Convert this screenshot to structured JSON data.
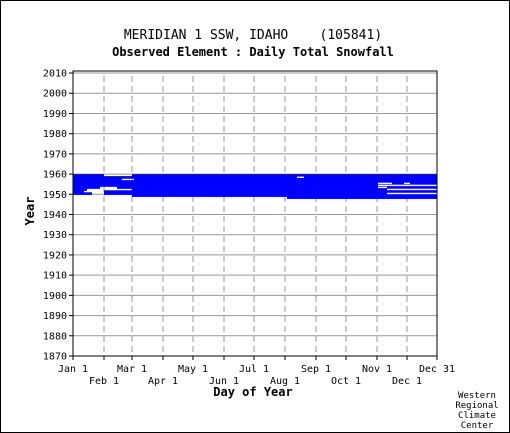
{
  "chart_data": {
    "type": "timeline",
    "title": "MERIDIAN 1 SSW, IDAHO    (105841)",
    "subtitle": "Observed Element : Daily Total Snowfall",
    "xlabel": "Day of Year",
    "ylabel": "Year",
    "xlim": [
      1,
      365
    ],
    "ylim": [
      1870,
      2011
    ],
    "x_ticks_upper": [
      {
        "label": "Jan 1",
        "day": 1
      },
      {
        "label": "Mar 1",
        "day": 60
      },
      {
        "label": "May 1",
        "day": 121
      },
      {
        "label": "Jul 1",
        "day": 182
      },
      {
        "label": "Sep 1",
        "day": 244
      },
      {
        "label": "Nov 1",
        "day": 305
      },
      {
        "label": "Dec 31",
        "day": 365
      }
    ],
    "x_ticks_lower": [
      {
        "label": "Feb 1",
        "day": 32
      },
      {
        "label": "Apr 1",
        "day": 91
      },
      {
        "label": "Jun 1",
        "day": 152
      },
      {
        "label": "Aug 1",
        "day": 213
      },
      {
        "label": "Oct 1",
        "day": 274
      },
      {
        "label": "Dec 1",
        "day": 335
      }
    ],
    "y_ticks": [
      2010,
      2000,
      1990,
      1980,
      1970,
      1960,
      1950,
      1940,
      1930,
      1920,
      1910,
      1900,
      1890,
      1880,
      1870
    ],
    "grid": true,
    "series_color": "#0000ff",
    "segments": [
      {
        "year": 1959,
        "start": 1,
        "end": 32
      },
      {
        "year": 1959,
        "start": 60,
        "end": 365
      },
      {
        "year": 1958,
        "start": 1,
        "end": 365
      },
      {
        "year": 1957,
        "start": 1,
        "end": 50
      },
      {
        "year": 1957,
        "start": 62,
        "end": 365
      },
      {
        "year": 1956,
        "start": 1,
        "end": 365
      },
      {
        "year": 1955,
        "start": 1,
        "end": 365
      },
      {
        "year": 1954,
        "start": 1,
        "end": 365
      },
      {
        "year": 1953,
        "start": 1,
        "end": 28
      },
      {
        "year": 1953,
        "start": 45,
        "end": 365
      },
      {
        "year": 1952,
        "start": 1,
        "end": 15
      },
      {
        "year": 1952,
        "start": 60,
        "end": 365
      },
      {
        "year": 1951,
        "start": 1,
        "end": 12
      },
      {
        "year": 1951,
        "start": 32,
        "end": 365
      },
      {
        "year": 1950,
        "start": 1,
        "end": 20
      },
      {
        "year": 1950,
        "start": 32,
        "end": 365
      },
      {
        "year": 1949,
        "start": 60,
        "end": 365
      },
      {
        "year": 1948,
        "start": 215,
        "end": 365
      }
    ],
    "white_gaps": [
      {
        "year": 1958,
        "start": 225,
        "end": 232
      },
      {
        "year": 1955,
        "start": 306,
        "end": 320
      },
      {
        "year": 1955,
        "start": 332,
        "end": 338
      },
      {
        "year": 1954,
        "start": 306,
        "end": 365
      },
      {
        "year": 1953,
        "start": 306,
        "end": 315
      },
      {
        "year": 1952,
        "start": 315,
        "end": 365
      },
      {
        "year": 1950,
        "start": 315,
        "end": 365
      }
    ]
  },
  "credit": [
    "Western",
    "Regional",
    "Climate",
    "Center"
  ]
}
